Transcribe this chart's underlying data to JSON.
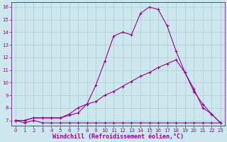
{
  "xlabel": "Windchill (Refroidissement éolien,°C)",
  "bg_color": "#cce8ee",
  "grid_color": "#aacccc",
  "line_color": "#990099",
  "xlim": [
    -0.5,
    23.5
  ],
  "ylim": [
    6.6,
    16.4
  ],
  "xticks": [
    0,
    1,
    2,
    3,
    4,
    5,
    6,
    7,
    8,
    9,
    10,
    11,
    12,
    13,
    14,
    15,
    16,
    17,
    18,
    19,
    20,
    21,
    22,
    23
  ],
  "yticks": [
    7,
    8,
    9,
    10,
    11,
    12,
    13,
    14,
    15,
    16
  ],
  "line1_x": [
    0,
    1,
    2,
    3,
    4,
    5,
    6,
    7,
    8,
    9,
    10,
    11,
    12,
    13,
    14,
    15,
    16,
    17,
    18,
    19,
    20,
    21,
    22,
    23
  ],
  "line1_y": [
    7.0,
    6.8,
    7.0,
    6.8,
    6.8,
    6.8,
    6.8,
    6.8,
    6.8,
    6.8,
    6.8,
    6.8,
    6.8,
    6.8,
    6.8,
    6.8,
    6.8,
    6.8,
    6.8,
    6.8,
    6.8,
    6.8,
    6.8,
    6.8
  ],
  "line2_x": [
    0,
    1,
    2,
    3,
    4,
    5,
    6,
    7,
    8,
    9,
    10,
    11,
    12,
    13,
    14,
    15,
    16,
    17,
    18,
    19,
    20,
    21,
    22,
    23
  ],
  "line2_y": [
    7.0,
    7.0,
    7.2,
    7.2,
    7.2,
    7.2,
    7.4,
    7.6,
    8.3,
    8.5,
    9.0,
    9.3,
    9.7,
    10.1,
    10.5,
    10.8,
    11.2,
    11.5,
    11.8,
    10.8,
    9.3,
    8.3,
    7.5,
    6.8
  ],
  "line3_x": [
    0,
    1,
    2,
    3,
    4,
    5,
    6,
    7,
    8,
    9,
    10,
    11,
    12,
    13,
    14,
    15,
    16,
    17,
    18,
    19,
    20,
    21,
    22,
    23
  ],
  "line3_y": [
    7.0,
    7.0,
    7.2,
    7.2,
    7.2,
    7.2,
    7.5,
    8.0,
    8.3,
    9.8,
    11.7,
    13.7,
    14.0,
    13.8,
    15.5,
    16.0,
    15.8,
    14.5,
    12.5,
    10.8,
    9.5,
    8.0,
    7.5,
    6.8
  ],
  "marker": "+",
  "markersize": 3,
  "linewidth": 0.8,
  "tick_fontsize": 5.0,
  "xlabel_fontsize": 6.0
}
